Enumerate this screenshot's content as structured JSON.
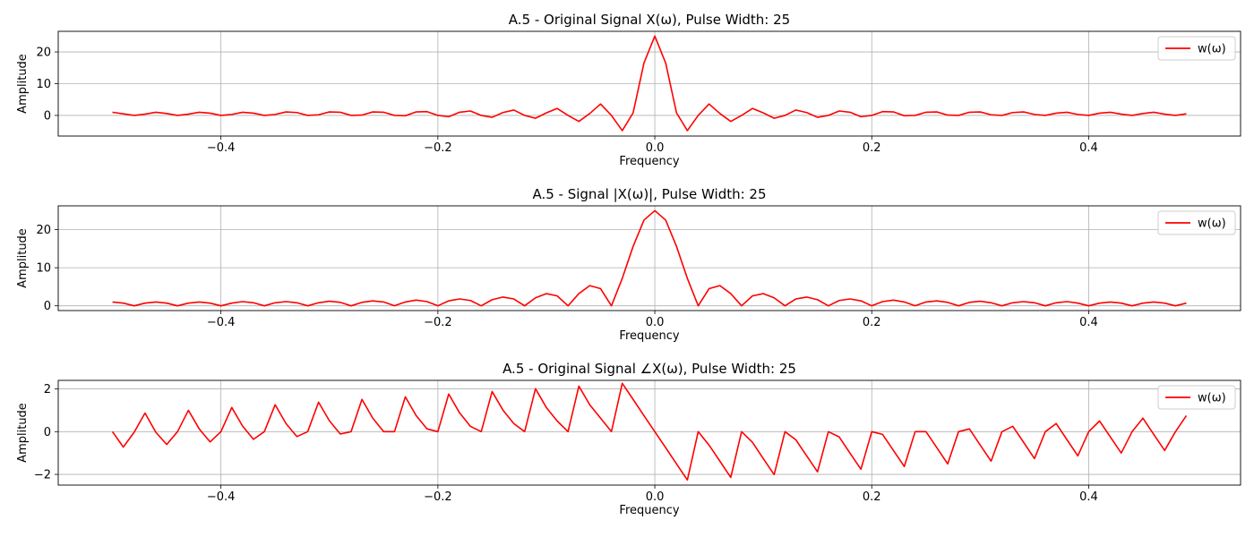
{
  "chart_data": [
    {
      "type": "line",
      "title": "A.5 - Original Signal X(ω), Pulse Width: 25",
      "xlabel": "Frequency",
      "ylabel": "Amplitude",
      "xlim": [
        -0.55,
        0.54
      ],
      "ylim": [
        -6.5,
        26.5
      ],
      "xticks": [
        -0.4,
        -0.2,
        0.0,
        0.2,
        0.4
      ],
      "xtick_labels": [
        "−0.4",
        "−0.2",
        "0.0",
        "0.2",
        "0.4"
      ],
      "yticks": [
        0,
        10,
        20
      ],
      "ytick_labels": [
        "0",
        "10",
        "20"
      ],
      "grid": true,
      "legend": "top-right",
      "series": [
        {
          "name": "w(ω)",
          "color": "#ff0000",
          "x": [
            -0.5,
            -0.49,
            -0.48,
            -0.47,
            -0.46,
            -0.45,
            -0.44,
            -0.43,
            -0.42,
            -0.41,
            -0.4,
            -0.39,
            -0.38,
            -0.37,
            -0.36,
            -0.35,
            -0.34,
            -0.33,
            -0.32,
            -0.31,
            -0.3,
            -0.29,
            -0.28,
            -0.27,
            -0.26,
            -0.25,
            -0.24,
            -0.23,
            -0.22,
            -0.21,
            -0.2,
            -0.19,
            -0.18,
            -0.17,
            -0.16,
            -0.15,
            -0.14,
            -0.13,
            -0.12,
            -0.11,
            -0.1,
            -0.09,
            -0.08,
            -0.07,
            -0.06,
            -0.05,
            -0.04,
            -0.03,
            -0.02,
            -0.01,
            0.0,
            0.01,
            0.02,
            0.03,
            0.04,
            0.05,
            0.06,
            0.07,
            0.08,
            0.09,
            0.1,
            0.11,
            0.12,
            0.13,
            0.14,
            0.15,
            0.16,
            0.17,
            0.18,
            0.19,
            0.2,
            0.21,
            0.22,
            0.23,
            0.24,
            0.25,
            0.26,
            0.27,
            0.28,
            0.29,
            0.3,
            0.31,
            0.32,
            0.33,
            0.34,
            0.35,
            0.36,
            0.37,
            0.38,
            0.39,
            0.4,
            0.41,
            0.42,
            0.43,
            0.44,
            0.45,
            0.46,
            0.47,
            0.48,
            0.49
          ],
          "y": [
            1.0,
            0.5,
            0.0,
            0.4,
            1.0,
            0.6,
            0.0,
            0.4,
            1.0,
            0.7,
            0.0,
            0.3,
            1.0,
            0.7,
            0.0,
            0.3,
            1.1,
            0.9,
            0.0,
            0.2,
            1.1,
            1.0,
            0.0,
            0.1,
            1.1,
            1.0,
            0.0,
            -0.1,
            1.1,
            1.2,
            0.0,
            -0.4,
            1.0,
            1.4,
            0.0,
            -0.6,
            0.9,
            1.7,
            0.0,
            -0.9,
            0.8,
            2.2,
            0.0,
            -1.9,
            0.6,
            3.6,
            0.0,
            -4.8,
            0.8,
            16.5,
            25.0,
            16.5,
            0.8,
            -4.8,
            0.0,
            3.6,
            0.6,
            -1.9,
            0.0,
            2.2,
            0.8,
            -0.9,
            0.0,
            1.7,
            0.9,
            -0.6,
            0.0,
            1.4,
            1.0,
            -0.4,
            0.0,
            1.2,
            1.1,
            -0.1,
            0.0,
            1.0,
            1.1,
            0.1,
            0.0,
            1.0,
            1.1,
            0.2,
            0.0,
            0.9,
            1.1,
            0.3,
            0.0,
            0.7,
            1.0,
            0.3,
            0.0,
            0.7,
            1.0,
            0.4,
            0.0,
            0.6,
            1.0,
            0.4,
            0.0,
            0.5
          ]
        }
      ]
    },
    {
      "type": "line",
      "title": "A.5 - Signal |X(ω)|, Pulse Width: 25",
      "xlabel": "Frequency",
      "ylabel": "Amplitude",
      "xlim": [
        -0.55,
        0.54
      ],
      "ylim": [
        -1.25,
        26.25
      ],
      "xticks": [
        -0.4,
        -0.2,
        0.0,
        0.2,
        0.4
      ],
      "xtick_labels": [
        "−0.4",
        "−0.2",
        "0.0",
        "0.2",
        "0.4"
      ],
      "yticks": [
        0,
        10,
        20
      ],
      "ytick_labels": [
        "0",
        "10",
        "20"
      ],
      "grid": true,
      "legend": "top-right",
      "series": [
        {
          "name": "w(ω)",
          "color": "#ff0000",
          "x": [
            -0.5,
            -0.49,
            -0.48,
            -0.47,
            -0.46,
            -0.45,
            -0.44,
            -0.43,
            -0.42,
            -0.41,
            -0.4,
            -0.39,
            -0.38,
            -0.37,
            -0.36,
            -0.35,
            -0.34,
            -0.33,
            -0.32,
            -0.31,
            -0.3,
            -0.29,
            -0.28,
            -0.27,
            -0.26,
            -0.25,
            -0.24,
            -0.23,
            -0.22,
            -0.21,
            -0.2,
            -0.19,
            -0.18,
            -0.17,
            -0.16,
            -0.15,
            -0.14,
            -0.13,
            -0.12,
            -0.11,
            -0.1,
            -0.09,
            -0.08,
            -0.07,
            -0.06,
            -0.05,
            -0.04,
            -0.03,
            -0.02,
            -0.01,
            0.0,
            0.01,
            0.02,
            0.03,
            0.04,
            0.05,
            0.06,
            0.07,
            0.08,
            0.09,
            0.1,
            0.11,
            0.12,
            0.13,
            0.14,
            0.15,
            0.16,
            0.17,
            0.18,
            0.19,
            0.2,
            0.21,
            0.22,
            0.23,
            0.24,
            0.25,
            0.26,
            0.27,
            0.28,
            0.29,
            0.3,
            0.31,
            0.32,
            0.33,
            0.34,
            0.35,
            0.36,
            0.37,
            0.38,
            0.39,
            0.4,
            0.41,
            0.42,
            0.43,
            0.44,
            0.45,
            0.46,
            0.47,
            0.48,
            0.49
          ],
          "y": [
            1.0,
            0.7,
            0.0,
            0.7,
            1.0,
            0.7,
            0.0,
            0.7,
            1.0,
            0.7,
            0.0,
            0.7,
            1.1,
            0.8,
            0.0,
            0.8,
            1.1,
            0.8,
            0.0,
            0.8,
            1.2,
            0.9,
            0.0,
            0.9,
            1.3,
            1.0,
            0.0,
            1.0,
            1.5,
            1.1,
            0.0,
            1.3,
            1.8,
            1.4,
            0.0,
            1.6,
            2.3,
            1.8,
            0.0,
            2.1,
            3.2,
            2.6,
            0.0,
            3.2,
            5.3,
            4.5,
            0.0,
            7.2,
            15.6,
            22.5,
            25.0,
            22.5,
            15.6,
            7.2,
            0.0,
            4.5,
            5.3,
            3.2,
            0.0,
            2.6,
            3.2,
            2.1,
            0.0,
            1.8,
            2.3,
            1.6,
            0.0,
            1.4,
            1.8,
            1.3,
            0.0,
            1.1,
            1.5,
            1.0,
            0.0,
            1.0,
            1.3,
            0.9,
            0.0,
            0.9,
            1.2,
            0.8,
            0.0,
            0.8,
            1.1,
            0.8,
            0.0,
            0.8,
            1.1,
            0.7,
            0.0,
            0.7,
            1.0,
            0.7,
            0.0,
            0.7,
            1.0,
            0.7,
            0.0,
            0.7
          ]
        }
      ]
    },
    {
      "type": "line",
      "title": "A.5 - Original Signal ∠X(ω), Pulse Width: 25",
      "xlabel": "Frequency",
      "ylabel": "Amplitude",
      "xlim": [
        -0.55,
        0.54
      ],
      "ylim": [
        -2.5,
        2.4
      ],
      "xticks": [
        -0.4,
        -0.2,
        0.0,
        0.2,
        0.4
      ],
      "xtick_labels": [
        "−0.4",
        "−0.2",
        "0.0",
        "0.2",
        "0.4"
      ],
      "yticks": [
        -2,
        0,
        2
      ],
      "ytick_labels": [
        "−2",
        "0",
        "2"
      ],
      "grid": true,
      "legend": "top-right",
      "series": [
        {
          "name": "w(ω)",
          "color": "#ff0000",
          "x": [
            -0.5,
            -0.49,
            -0.48,
            -0.47,
            -0.46,
            -0.45,
            -0.44,
            -0.43,
            -0.42,
            -0.41,
            -0.4,
            -0.39,
            -0.38,
            -0.37,
            -0.36,
            -0.35,
            -0.34,
            -0.33,
            -0.32,
            -0.31,
            -0.3,
            -0.29,
            -0.28,
            -0.27,
            -0.26,
            -0.25,
            -0.24,
            -0.23,
            -0.22,
            -0.21,
            -0.2,
            -0.19,
            -0.18,
            -0.17,
            -0.16,
            -0.15,
            -0.14,
            -0.13,
            -0.12,
            -0.11,
            -0.1,
            -0.09,
            -0.08,
            -0.07,
            -0.06,
            -0.05,
            -0.04,
            -0.03,
            -0.02,
            -0.01,
            0.0,
            0.01,
            0.02,
            0.03,
            0.04,
            0.05,
            0.06,
            0.07,
            0.08,
            0.09,
            0.1,
            0.11,
            0.12,
            0.13,
            0.14,
            0.15,
            0.16,
            0.17,
            0.18,
            0.19,
            0.2,
            0.21,
            0.22,
            0.23,
            0.24,
            0.25,
            0.26,
            0.27,
            0.28,
            0.29,
            0.3,
            0.31,
            0.32,
            0.33,
            0.34,
            0.35,
            0.36,
            0.37,
            0.38,
            0.39,
            0.4,
            0.41,
            0.42,
            0.43,
            0.44,
            0.45,
            0.46,
            0.47,
            0.48,
            0.49
          ],
          "y": [
            0.0,
            -0.72,
            -0.03,
            0.87,
            -0.03,
            -0.6,
            0.0,
            1.0,
            0.13,
            -0.48,
            0.0,
            1.13,
            0.26,
            -0.36,
            0.0,
            1.26,
            0.38,
            -0.23,
            0.0,
            1.38,
            0.51,
            -0.11,
            0.0,
            1.51,
            0.63,
            0.0,
            0.0,
            1.63,
            0.75,
            0.13,
            0.0,
            1.76,
            0.88,
            0.25,
            0.0,
            1.88,
            1.01,
            0.38,
            0.0,
            2.01,
            1.13,
            0.5,
            0.0,
            2.13,
            1.26,
            0.63,
            0.0,
            2.26,
            1.51,
            0.75,
            0.0,
            -0.75,
            -1.51,
            -2.26,
            0.0,
            -0.63,
            -1.38,
            -2.14,
            0.0,
            -0.5,
            -1.26,
            -2.01,
            0.0,
            -0.38,
            -1.13,
            -1.88,
            0.0,
            -0.25,
            -1.01,
            -1.76,
            0.0,
            -0.13,
            -0.88,
            -1.63,
            0.0,
            0.0,
            -0.75,
            -1.51,
            0.0,
            0.13,
            -0.63,
            -1.38,
            0.0,
            0.25,
            -0.5,
            -1.26,
            0.0,
            0.38,
            -0.38,
            -1.13,
            0.0,
            0.5,
            -0.25,
            -1.0,
            0.0,
            0.63,
            -0.13,
            -0.88,
            0.0,
            0.75
          ]
        }
      ]
    }
  ]
}
